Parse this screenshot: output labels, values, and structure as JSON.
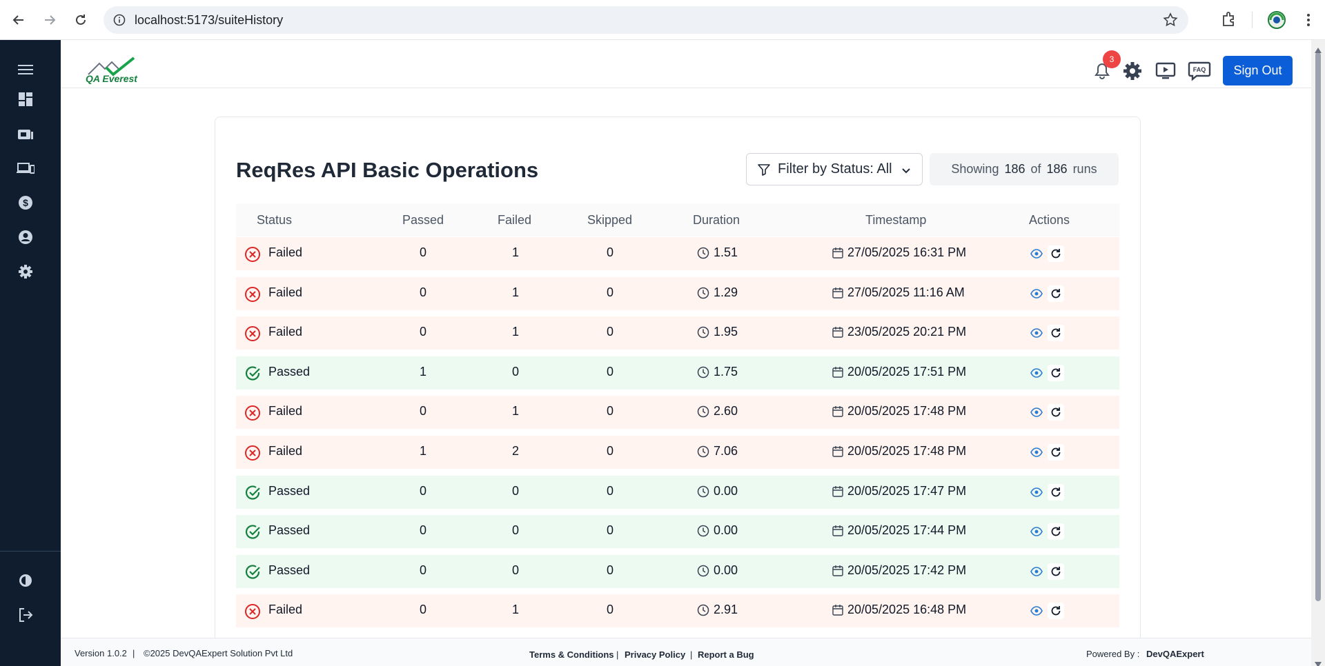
{
  "browser": {
    "url": "localhost:5173/suiteHistory",
    "icons": [
      "back-arrow-icon",
      "forward-arrow-icon",
      "reload-icon",
      "info-icon",
      "star-icon",
      "extensions-icon",
      "profile-icon",
      "kebab-menu-icon"
    ]
  },
  "sidebar": {
    "items": [
      {
        "name": "menu-icon"
      },
      {
        "name": "dashboard-icon"
      },
      {
        "name": "test-runs-icon"
      },
      {
        "name": "devices-icon"
      },
      {
        "name": "billing-icon"
      },
      {
        "name": "profile-icon"
      },
      {
        "name": "settings-icon"
      }
    ],
    "bottom_items": [
      {
        "name": "theme-icon"
      },
      {
        "name": "logout-icon"
      }
    ]
  },
  "header": {
    "logo_text": "QA Everest",
    "notification_count": "3",
    "sign_out_label": "Sign Out",
    "faq_label": "FAQ"
  },
  "main": {
    "title": "ReqRes API Basic Operations",
    "filter_label": "Filter by Status: All",
    "showing": {
      "prefix": "Showing",
      "shown": "186",
      "of": "of",
      "total": "186",
      "suffix": "runs"
    },
    "columns": [
      "Status",
      "Passed",
      "Failed",
      "Skipped",
      "Duration",
      "Timestamp",
      "Actions"
    ],
    "rows": [
      {
        "status": "Failed",
        "passed": "0",
        "failed": "1",
        "skipped": "0",
        "duration": "1.51",
        "timestamp": "27/05/2025 16:31 PM"
      },
      {
        "status": "Failed",
        "passed": "0",
        "failed": "1",
        "skipped": "0",
        "duration": "1.29",
        "timestamp": "27/05/2025 11:16 AM"
      },
      {
        "status": "Failed",
        "passed": "0",
        "failed": "1",
        "skipped": "0",
        "duration": "1.95",
        "timestamp": "23/05/2025 20:21 PM"
      },
      {
        "status": "Passed",
        "passed": "1",
        "failed": "0",
        "skipped": "0",
        "duration": "1.75",
        "timestamp": "20/05/2025 17:51 PM"
      },
      {
        "status": "Failed",
        "passed": "0",
        "failed": "1",
        "skipped": "0",
        "duration": "2.60",
        "timestamp": "20/05/2025 17:48 PM"
      },
      {
        "status": "Failed",
        "passed": "1",
        "failed": "2",
        "skipped": "0",
        "duration": "7.06",
        "timestamp": "20/05/2025 17:48 PM"
      },
      {
        "status": "Passed",
        "passed": "0",
        "failed": "0",
        "skipped": "0",
        "duration": "0.00",
        "timestamp": "20/05/2025 17:47 PM"
      },
      {
        "status": "Passed",
        "passed": "0",
        "failed": "0",
        "skipped": "0",
        "duration": "0.00",
        "timestamp": "20/05/2025 17:44 PM"
      },
      {
        "status": "Passed",
        "passed": "0",
        "failed": "0",
        "skipped": "0",
        "duration": "0.00",
        "timestamp": "20/05/2025 17:42 PM"
      },
      {
        "status": "Failed",
        "passed": "0",
        "failed": "1",
        "skipped": "0",
        "duration": "2.91",
        "timestamp": "20/05/2025 16:48 PM"
      }
    ]
  },
  "footer": {
    "version": "Version 1.0.2",
    "separator": "|",
    "copyright": "©2025 DevQAExpert Solution Pvt Ltd",
    "terms": "Terms & Conditions",
    "privacy": "Privacy Policy",
    "report_bug": "Report a Bug",
    "powered_by_label": "Powered By :",
    "powered_by": "DevQAExpert"
  },
  "colors": {
    "sidebar_bg": "#0f1d2e",
    "primary": "#0b5ed7",
    "failed_row": "#fff4ef",
    "passed_row": "#edfaf2",
    "failed_icon": "#dc2626",
    "passed_icon": "#15803d",
    "badge": "#ef4444"
  }
}
